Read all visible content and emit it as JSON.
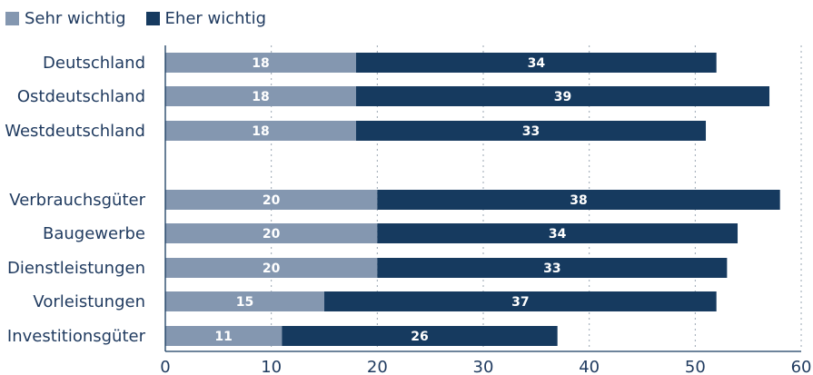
{
  "chart_data": {
    "type": "bar",
    "orientation": "horizontal",
    "stacked": true,
    "title": "",
    "xlabel": "",
    "ylabel": "",
    "categories": [
      "Deutschland",
      "Ostdeutschland",
      "Westdeutschland",
      "Verbrauchsgüter",
      "Baugewerbe",
      "Dienstleistungen",
      "Vorleistungen",
      "Investitionsgüter"
    ],
    "series": [
      {
        "name": "Sehr wichtig",
        "color": "#8497b0",
        "values": [
          18,
          18,
          18,
          20,
          20,
          20,
          15,
          11
        ]
      },
      {
        "name": "Eher wichtig",
        "color": "#163a5f",
        "values": [
          34,
          39,
          33,
          38,
          34,
          33,
          37,
          26
        ]
      }
    ],
    "xlim": [
      0,
      60
    ],
    "xticks": [
      "0",
      "10",
      "20",
      "30",
      "40",
      "50",
      "60"
    ],
    "grid": "vertical dotted",
    "legend_position": "top-left",
    "group_gap_after_index": 2
  }
}
